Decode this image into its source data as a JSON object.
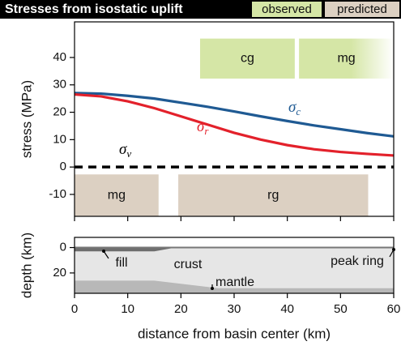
{
  "header": {
    "title": "Stresses from isostatic uplift",
    "legend": [
      {
        "label": "observed",
        "color": "#d5e6a6"
      },
      {
        "label": "predicted",
        "color": "#dcd0c2"
      }
    ]
  },
  "chart_data": [
    {
      "type": "line",
      "ylabel": "stress (MPa)",
      "x": [
        0,
        5,
        10,
        15,
        20,
        25,
        30,
        35,
        40,
        45,
        50,
        55,
        60
      ],
      "series": [
        {
          "name": "σ",
          "subscript": "c",
          "color": "#1f5a93",
          "values": [
            27,
            26.8,
            26,
            25,
            23.5,
            22,
            20.3,
            18.5,
            16.8,
            15.2,
            13.8,
            12.4,
            11.2
          ]
        },
        {
          "name": "σ",
          "subscript": "r",
          "color": "#e3212b",
          "values": [
            26.5,
            25.8,
            24,
            21.5,
            18.5,
            15.5,
            12.5,
            10,
            8,
            6.5,
            5.5,
            4.8,
            4.2
          ]
        },
        {
          "name": "σ",
          "subscript": "v",
          "color": "#000000",
          "dashed": true,
          "x": [
            0,
            60
          ],
          "values": [
            0,
            0
          ]
        }
      ],
      "regions": [
        {
          "label": "cg",
          "color": "#d5e6a6",
          "x": [
            23.6,
            41.4
          ],
          "y": [
            32.3,
            46.9
          ]
        },
        {
          "label": "mg",
          "color": "#d5e6a6",
          "fade": true,
          "x": [
            42.2,
            60
          ],
          "y": [
            32.3,
            46.9
          ]
        },
        {
          "label": "mg",
          "color": "#dcd0c2",
          "x": [
            0,
            15.8
          ],
          "y": [
            -18,
            -2.7
          ]
        },
        {
          "label": "rg",
          "color": "#dcd0c2",
          "x": [
            19.5,
            55.2
          ],
          "y": [
            -18,
            -2.7
          ]
        }
      ],
      "xlim": [
        0,
        60
      ],
      "xticks": [
        0,
        10,
        20,
        30,
        40,
        50,
        60
      ],
      "ylim": [
        -18,
        53
      ],
      "yticks": [
        -10,
        0,
        10,
        20,
        30,
        40
      ]
    },
    {
      "type": "layers",
      "ylabel": "depth (km)",
      "xlabel": "distance from basin center (km)",
      "xlim": [
        0,
        60
      ],
      "xticks": [
        0,
        10,
        20,
        30,
        40,
        50,
        60
      ],
      "ylim": [
        36,
        -8
      ],
      "yticks": [
        0,
        20
      ],
      "crust_color": "#e6e6e6",
      "layers": [
        {
          "name": "fill",
          "color": "#6e6e6e",
          "x": [
            0,
            15,
            19
          ],
          "depth": [
            3,
            3,
            0
          ]
        },
        {
          "name": "mantle",
          "color": "#b8b8b8",
          "x": [
            0,
            15,
            27,
            60
          ],
          "depth": [
            26,
            26,
            32,
            32
          ]
        }
      ],
      "annotations": [
        "fill",
        "crust",
        "peak ring",
        "mantle"
      ]
    }
  ]
}
